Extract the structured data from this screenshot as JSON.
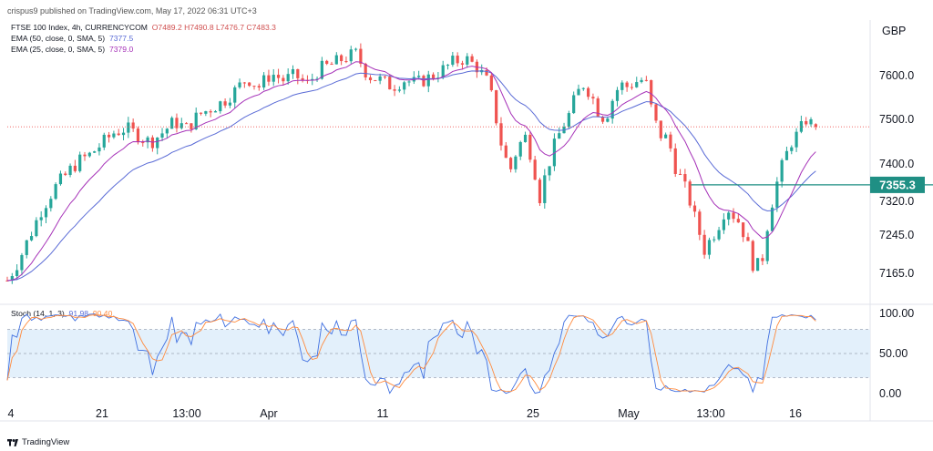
{
  "header": {
    "publisher": "crispus9 published on TradingView.com, May 17, 2022 06:31 UTC+3"
  },
  "legend": {
    "symbol": "FTSE 100 Index, 4h, CURRENCYCOM",
    "ohlc": "O7489.2 H7490.8 L7476.7 C7483.3",
    "ema50": "EMA (50, close, 0, SMA, 5)",
    "ema50_val": "7377.5",
    "ema25": "EMA (25, close, 0, SMA, 5)",
    "ema25_val": "7379.0",
    "stoch": "Stoch (14, 1, 3)",
    "stoch_k": "91.98",
    "stoch_d": "90.40"
  },
  "currency": "GBP",
  "footer": {
    "brand": "TradingView"
  },
  "colors": {
    "up": "#26a69a",
    "down": "#ef5350",
    "ema50": "#5a6bd6",
    "ema25": "#a632b8",
    "hline": "#1f8f84",
    "stochK": "#3f6fe0",
    "stochD": "#ff8a3d",
    "stochBand": "#e3f0fb"
  },
  "chart_data": [
    {
      "type": "candlestick",
      "x_ticks": [
        "4",
        "21",
        "13:00",
        "Apr",
        "11",
        "25",
        "May",
        "13:00",
        "16"
      ],
      "y_ticks": [
        "7600.0",
        "7500.0",
        "7400.0",
        "7320.0",
        "7245.0",
        "7165.0"
      ],
      "ylim": [
        7120,
        7690
      ],
      "last_price": 7483.3,
      "hline": {
        "value": 7355.3,
        "label": "7355.3"
      },
      "series": [
        {
          "name": "Price",
          "close_path": [
            [
              0,
              7150
            ],
            [
              10,
              7195
            ],
            [
              18,
              7240
            ],
            [
              28,
              7300
            ],
            [
              38,
              7345
            ],
            [
              48,
              7375
            ],
            [
              58,
              7405
            ],
            [
              68,
              7420
            ],
            [
              78,
              7445
            ],
            [
              88,
              7470
            ],
            [
              98,
              7480
            ],
            [
              108,
              7465
            ],
            [
              118,
              7448
            ],
            [
              128,
              7470
            ],
            [
              138,
              7495
            ],
            [
              148,
              7480
            ],
            [
              158,
              7510
            ],
            [
              168,
              7525
            ],
            [
              178,
              7540
            ],
            [
              188,
              7565
            ],
            [
              198,
              7595
            ],
            [
              208,
              7575
            ],
            [
              218,
              7605
            ],
            [
              228,
              7590
            ],
            [
              238,
              7600
            ],
            [
              248,
              7580
            ],
            [
              258,
              7615
            ],
            [
              268,
              7625
            ],
            [
              278,
              7640
            ],
            [
              288,
              7650
            ],
            [
              298,
              7600
            ],
            [
              308,
              7590
            ],
            [
              318,
              7575
            ],
            [
              328,
              7590
            ],
            [
              338,
              7582
            ],
            [
              348,
              7595
            ],
            [
              358,
              7610
            ],
            [
              368,
              7630
            ],
            [
              378,
              7640
            ],
            [
              388,
              7620
            ],
            [
              398,
              7580
            ],
            [
              404,
              7500
            ],
            [
              410,
              7420
            ],
            [
              416,
              7390
            ],
            [
              422,
              7440
            ],
            [
              428,
              7460
            ],
            [
              434,
              7410
            ],
            [
              440,
              7330
            ],
            [
              446,
              7390
            ],
            [
              452,
              7440
            ],
            [
              458,
              7480
            ],
            [
              464,
              7510
            ],
            [
              470,
              7555
            ],
            [
              476,
              7580
            ],
            [
              482,
              7560
            ],
            [
              488,
              7520
            ],
            [
              494,
              7500
            ],
            [
              500,
              7545
            ],
            [
              506,
              7580
            ],
            [
              512,
              7575
            ],
            [
              518,
              7585
            ],
            [
              524,
              7590
            ],
            [
              528,
              7580
            ],
            [
              534,
              7500
            ],
            [
              540,
              7465
            ],
            [
              546,
              7455
            ],
            [
              552,
              7395
            ],
            [
              558,
              7360
            ],
            [
              564,
              7320
            ],
            [
              570,
              7265
            ],
            [
              576,
              7215
            ],
            [
              582,
              7240
            ],
            [
              588,
              7270
            ],
            [
              594,
              7310
            ],
            [
              600,
              7290
            ],
            [
              606,
              7270
            ],
            [
              612,
              7220
            ],
            [
              618,
              7170
            ],
            [
              624,
              7200
            ],
            [
              630,
              7300
            ],
            [
              636,
              7360
            ],
            [
              642,
              7410
            ],
            [
              648,
              7450
            ],
            [
              654,
              7470
            ],
            [
              660,
              7500
            ],
            [
              666,
              7485
            ],
            [
              670,
              7483
            ]
          ]
        },
        {
          "name": "EMA (50, close, 0, SMA, 5)",
          "current": 7377.5
        },
        {
          "name": "EMA (25, close, 0, SMA, 5)",
          "current": 7379.0
        }
      ]
    },
    {
      "type": "line",
      "y_ticks": [
        "100.00",
        "50.00",
        "0.00"
      ],
      "ylim": [
        -5,
        108
      ],
      "bands": [
        20,
        80
      ],
      "series": [
        {
          "name": "K",
          "current": 91.98
        },
        {
          "name": "D",
          "current": 90.4
        }
      ]
    }
  ]
}
